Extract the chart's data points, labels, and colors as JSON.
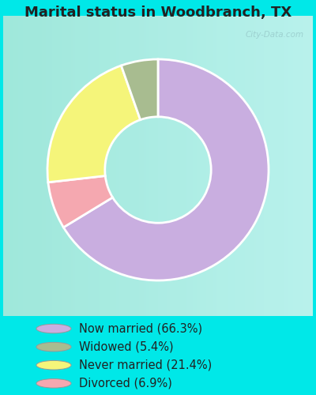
{
  "title": "Marital status in Woodbranch, TX",
  "legend_labels": [
    "Now married (66.3%)",
    "Widowed (5.4%)",
    "Never married (21.4%)",
    "Divorced (6.9%)"
  ],
  "legend_colors": [
    "#c9aee0",
    "#a8bc90",
    "#f5f57a",
    "#f5a8b0"
  ],
  "plot_values": [
    66.3,
    6.9,
    21.4,
    5.4
  ],
  "plot_colors": [
    "#c9aee0",
    "#f5a8b0",
    "#f5f57a",
    "#a8bc90"
  ],
  "background_cyan": "#00e8e8",
  "chart_bg_outer": "#e8f5ee",
  "chart_bg_inner": "#d0ecdc",
  "watermark": "City-Data.com",
  "title_fontsize": 13,
  "legend_fontsize": 10.5,
  "startangle": 90
}
